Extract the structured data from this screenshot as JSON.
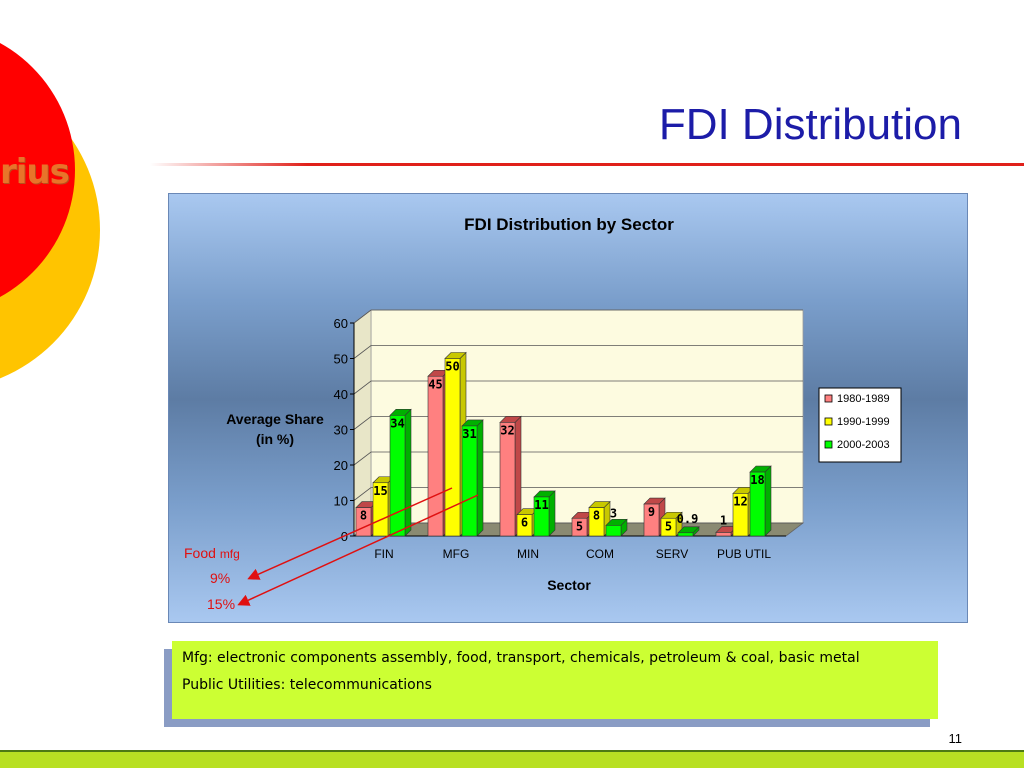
{
  "slide": {
    "logo_text": "rius",
    "title": "FDI Distribution",
    "page_number": "11"
  },
  "annotation": {
    "food_label": "Food",
    "mfg_label": "mfg",
    "pct_1": "9%",
    "pct_2": "15%"
  },
  "notes": {
    "line1": "Mfg: electronic components assembly, food, transport, chemicals, petroleum & coal, basic metal",
    "line2": "Public Utilities: telecommunications"
  },
  "colors": {
    "series_1980": "#ff8080",
    "series_1990": "#ffff00",
    "series_2000": "#00ff00",
    "accent_red": "#e0201a",
    "title_blue": "#1c1ca8",
    "note_box": "#ccff33"
  },
  "chart_data": {
    "type": "bar",
    "title": "FDI Distribution by Sector",
    "xlabel": "Sector",
    "ylabel": "Average Share (in %)",
    "ylim": [
      0,
      60
    ],
    "yticks": [
      0,
      10,
      20,
      30,
      40,
      50,
      60
    ],
    "categories": [
      "FIN",
      "MFG",
      "MIN",
      "COM",
      "SERV",
      "PUB UTIL"
    ],
    "series": [
      {
        "name": "1980-1989",
        "values": [
          8,
          45,
          32,
          5,
          9,
          1
        ],
        "labels": [
          "8",
          "45",
          "32",
          "5",
          "9",
          "1"
        ]
      },
      {
        "name": "1990-1999",
        "values": [
          15,
          50,
          6,
          8,
          5,
          12
        ],
        "labels": [
          "15",
          "50",
          "6",
          "8",
          "5",
          "12"
        ]
      },
      {
        "name": "2000-2003",
        "values": [
          34,
          31,
          11,
          3,
          0.9,
          18
        ],
        "labels": [
          "34",
          "31",
          "11",
          "3",
          "0.9",
          "18"
        ]
      }
    ],
    "legend_position": "right",
    "grid": true
  }
}
